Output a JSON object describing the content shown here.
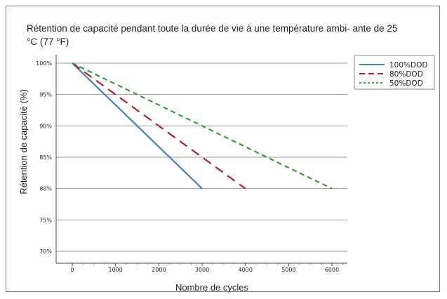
{
  "chart_data": {
    "type": "line",
    "title": "Rétention de capacité pendant toute la durée de vie à une température ambi- ante de 25 °C (77 °F)",
    "xlabel": "Nombre de cycles",
    "ylabel": "Rétention de capacité (%)",
    "x_ticks": [
      "0",
      "1000",
      "2000",
      "3000",
      "4000",
      "5000",
      "6000"
    ],
    "y_ticks": [
      "100%",
      "95%",
      "90%",
      "85%",
      "80%",
      "75%",
      "70%"
    ],
    "xlim": [
      0,
      6500
    ],
    "ylim": [
      69.5,
      100
    ],
    "grid": "horizontal",
    "legend_position": "top-right",
    "series": [
      {
        "name": "100%DOD",
        "color": "#4a7fbd",
        "dash": "solid",
        "points": [
          [
            0,
            100
          ],
          [
            3000,
            80
          ]
        ]
      },
      {
        "name": "80%DOD",
        "color": "#b0232d",
        "dash": "long-dash",
        "points": [
          [
            0,
            100
          ],
          [
            4000,
            80
          ]
        ]
      },
      {
        "name": "50%DOD",
        "color": "#3d9b3d",
        "dash": "short-dash",
        "points": [
          [
            0,
            100
          ],
          [
            6000,
            80
          ]
        ]
      }
    ]
  }
}
